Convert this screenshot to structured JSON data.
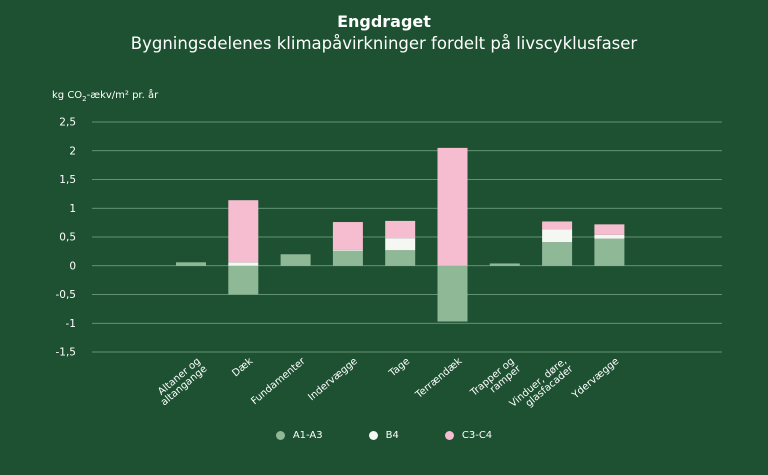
{
  "chart_data": {
    "type": "bar",
    "stacked": true,
    "title": "Engdraget",
    "subtitle": "Bygningsdelenes klimapåvirkninger fordelt på livscyklusfaser",
    "ylabel_prefix": "kg CO",
    "ylabel_sub": "2",
    "ylabel_suffix": "-ækv/m² pr. år",
    "ylim": [
      -1.5,
      2.5
    ],
    "yticks": [
      2.5,
      2,
      1.5,
      1,
      0.5,
      0,
      -0.5,
      -1,
      -1.5
    ],
    "ytick_labels": [
      "2,5",
      "2",
      "1,5",
      "1",
      "0,5",
      "0",
      "-0,5",
      "-1",
      "-1,5"
    ],
    "grid": true,
    "legend_position": "bottom",
    "categories": [
      [
        "Altaner og",
        "altangange"
      ],
      [
        "Dæk"
      ],
      [
        "Fundamenter"
      ],
      [
        "Indervægge"
      ],
      [
        "Tage"
      ],
      [
        "Terrændæk"
      ],
      [
        "Trapper og",
        "ramper"
      ],
      [
        "Vinduer, døre,",
        "glasfacader"
      ],
      [
        "Ydervægge"
      ]
    ],
    "series": [
      {
        "name": "A1-A3",
        "color": "#8fb896",
        "values": [
          0.06,
          -0.5,
          0.2,
          0.26,
          0.27,
          -0.97,
          0.04,
          0.41,
          0.47
        ]
      },
      {
        "name": "B4",
        "color": "#f4f7f2",
        "values": [
          0.0,
          0.06,
          0.0,
          0.02,
          0.21,
          0.0,
          0.0,
          0.22,
          0.07
        ]
      },
      {
        "name": "C3-C4",
        "color": "#f6bdd0",
        "values": [
          0.0,
          1.08,
          0.0,
          0.48,
          0.3,
          2.05,
          0.0,
          0.14,
          0.18
        ]
      }
    ]
  }
}
